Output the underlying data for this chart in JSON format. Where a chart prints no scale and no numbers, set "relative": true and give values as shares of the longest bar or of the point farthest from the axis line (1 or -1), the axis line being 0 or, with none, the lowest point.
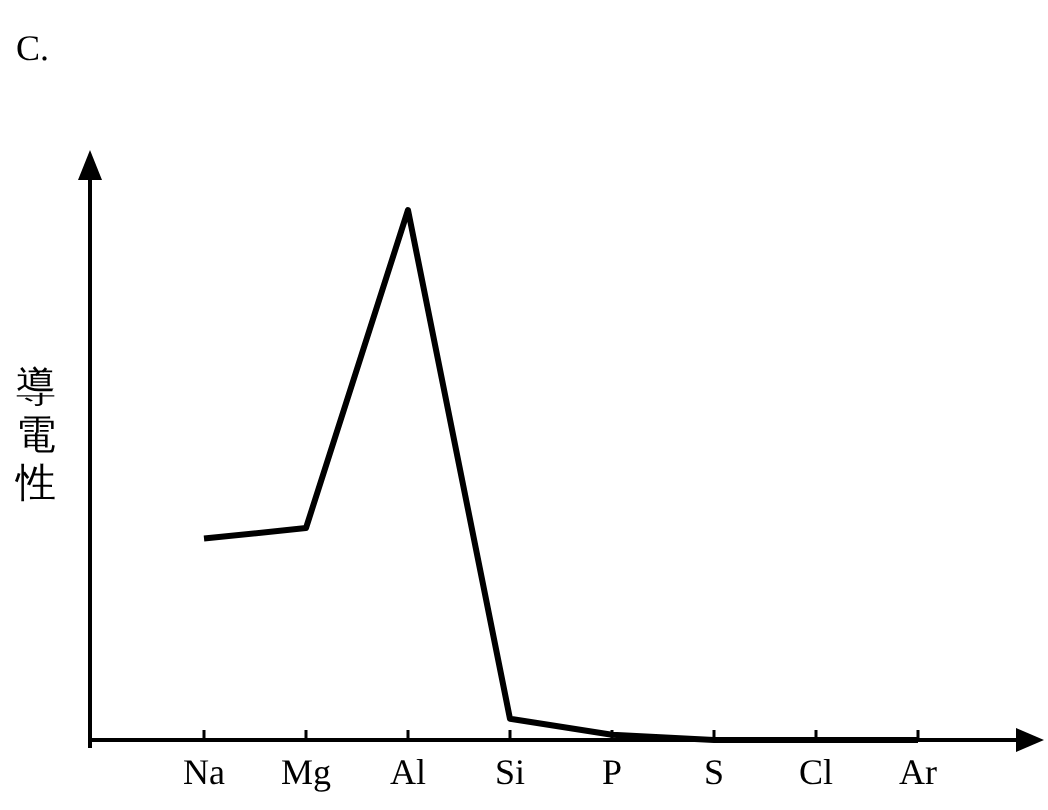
{
  "chart_data": {
    "type": "line",
    "title": "C.",
    "ylabel": "導電性",
    "relative": true,
    "categories": [
      "Na",
      "Mg",
      "Al",
      "Si",
      "P",
      "S",
      "Cl",
      "Ar"
    ],
    "series": [
      {
        "color": "#000000",
        "values": [
          0.38,
          0.4,
          1,
          0.04,
          0.01,
          0,
          0,
          0
        ]
      }
    ],
    "marker": "none",
    "line_style": "solid"
  }
}
